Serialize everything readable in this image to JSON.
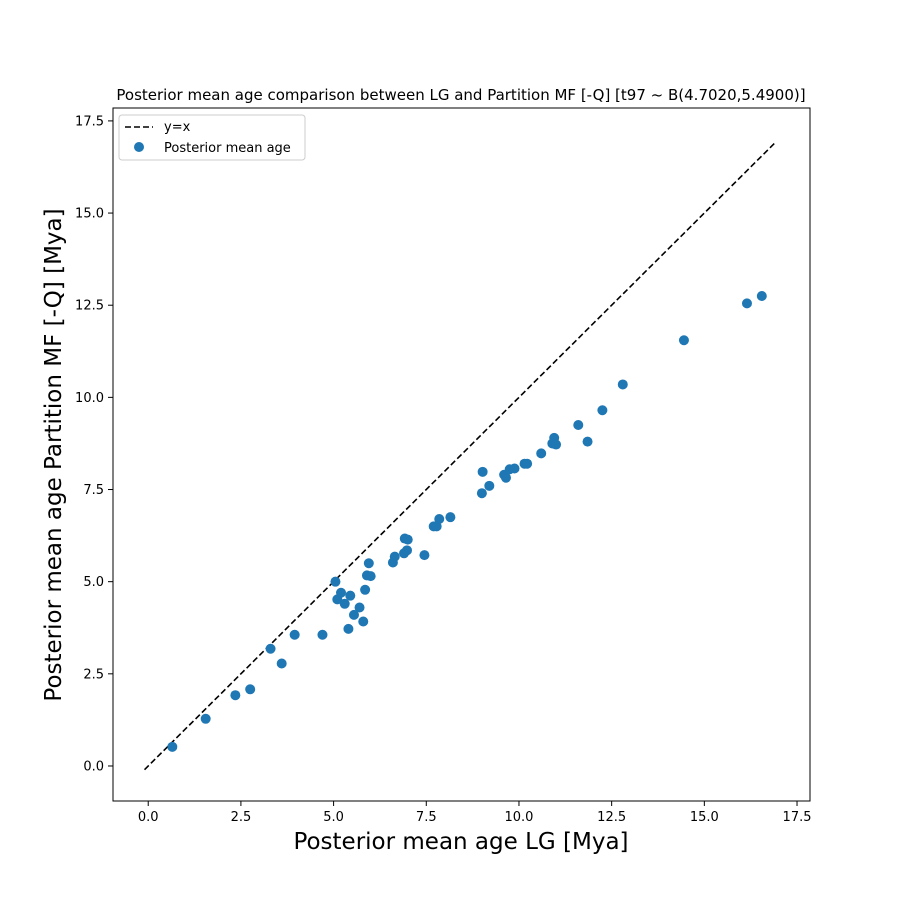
{
  "chart_data": {
    "type": "scatter",
    "title": "Posterior mean age comparison between LG and Partition MF [-Q] [t97 ~ B(4.7020,5.4900)]",
    "xlabel": "Posterior mean age LG [Mya]",
    "ylabel": "Posterior mean age Partition MF [-Q] [Mya]",
    "xlim": [
      -0.95,
      17.85
    ],
    "ylim": [
      -0.95,
      17.85
    ],
    "xticks": [
      0.0,
      2.5,
      5.0,
      7.5,
      10.0,
      12.5,
      15.0,
      17.5
    ],
    "yticks": [
      0.0,
      2.5,
      5.0,
      7.5,
      10.0,
      12.5,
      15.0,
      17.5
    ],
    "xtick_labels": [
      "0.0",
      "2.5",
      "5.0",
      "7.5",
      "10.0",
      "12.5",
      "15.0",
      "17.5"
    ],
    "ytick_labels": [
      "0.0",
      "2.5",
      "5.0",
      "7.5",
      "10.0",
      "12.5",
      "15.0",
      "17.5"
    ],
    "grid": false,
    "legend": {
      "placement": "top-left",
      "entries": [
        "y=x",
        "Posterior mean age"
      ]
    },
    "colors": {
      "points": "#1f77b4",
      "reference_line": "#000000"
    },
    "reference_line": {
      "name": "y=x",
      "x": [
        -0.1,
        16.9
      ],
      "y": [
        -0.1,
        16.9
      ]
    },
    "series": [
      {
        "name": "Posterior mean age",
        "points": [
          [
            0.65,
            0.52
          ],
          [
            1.55,
            1.28
          ],
          [
            2.35,
            1.92
          ],
          [
            2.75,
            2.08
          ],
          [
            3.3,
            3.18
          ],
          [
            3.6,
            2.78
          ],
          [
            3.95,
            3.56
          ],
          [
            4.7,
            3.56
          ],
          [
            5.05,
            5.0
          ],
          [
            5.1,
            4.52
          ],
          [
            5.2,
            4.7
          ],
          [
            5.3,
            4.4
          ],
          [
            5.4,
            3.72
          ],
          [
            5.45,
            4.62
          ],
          [
            5.55,
            4.1
          ],
          [
            5.7,
            4.3
          ],
          [
            5.8,
            3.92
          ],
          [
            5.85,
            4.78
          ],
          [
            5.9,
            5.17
          ],
          [
            5.95,
            5.5
          ],
          [
            6.0,
            5.15
          ],
          [
            6.6,
            5.52
          ],
          [
            6.65,
            5.68
          ],
          [
            6.9,
            5.77
          ],
          [
            6.92,
            6.17
          ],
          [
            6.98,
            5.85
          ],
          [
            7.0,
            6.14
          ],
          [
            7.45,
            5.72
          ],
          [
            7.7,
            6.5
          ],
          [
            7.78,
            6.5
          ],
          [
            7.85,
            6.7
          ],
          [
            8.15,
            6.75
          ],
          [
            9.0,
            7.4
          ],
          [
            9.02,
            7.98
          ],
          [
            9.2,
            7.6
          ],
          [
            9.6,
            7.9
          ],
          [
            9.65,
            7.82
          ],
          [
            9.75,
            8.05
          ],
          [
            9.88,
            8.07
          ],
          [
            10.15,
            8.2
          ],
          [
            10.22,
            8.2
          ],
          [
            10.6,
            8.48
          ],
          [
            10.9,
            8.75
          ],
          [
            10.95,
            8.9
          ],
          [
            11.0,
            8.72
          ],
          [
            11.6,
            9.25
          ],
          [
            11.85,
            8.8
          ],
          [
            12.25,
            9.65
          ],
          [
            12.8,
            10.35
          ],
          [
            14.45,
            11.55
          ],
          [
            16.15,
            12.55
          ],
          [
            16.55,
            12.75
          ]
        ]
      }
    ]
  }
}
